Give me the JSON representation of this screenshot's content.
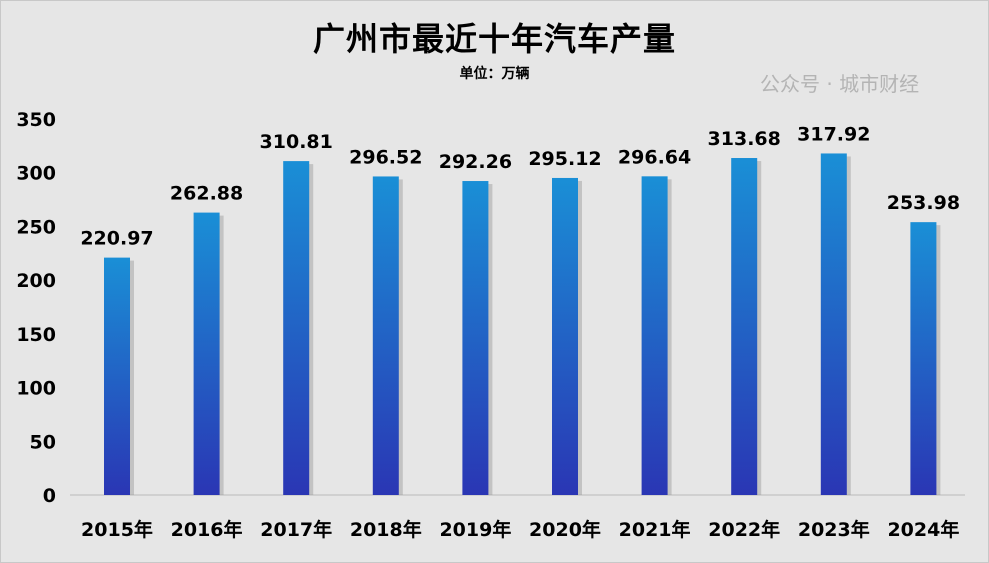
{
  "chart_data": {
    "type": "bar",
    "title": "广州市最近十年汽车产量",
    "subtitle": "单位：万辆",
    "categories": [
      "2015年",
      "2016年",
      "2017年",
      "2018年",
      "2019年",
      "2020年",
      "2021年",
      "2022年",
      "2023年",
      "2024年"
    ],
    "values": [
      220.97,
      262.88,
      310.81,
      296.52,
      292.26,
      295.12,
      296.64,
      313.68,
      317.92,
      253.98
    ],
    "data_labels": [
      "220.97",
      "262.88",
      "310.81",
      "296.52",
      "292.26",
      "295.12",
      "296.64",
      "313.68",
      "317.92",
      "253.98"
    ],
    "ylim": [
      0,
      350
    ],
    "yticks": [
      "0",
      "50",
      "100",
      "150",
      "200",
      "250",
      "300",
      "350"
    ],
    "grid": false,
    "legend": "none",
    "bar_gradient": [
      "#1a8fd6",
      "#2a36b4"
    ]
  },
  "watermark": "公众号 · 城市财经"
}
